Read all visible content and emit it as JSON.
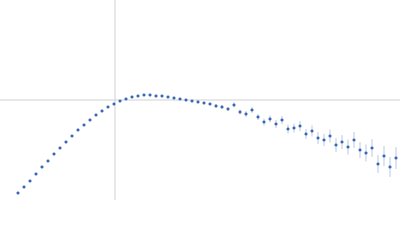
{
  "chart_data": {
    "type": "scatter",
    "x": [
      0.18,
      0.24,
      0.3,
      0.36,
      0.42,
      0.48,
      0.54,
      0.6,
      0.66,
      0.72,
      0.78,
      0.84,
      0.9,
      0.96,
      1.02,
      1.08,
      1.14,
      1.2,
      1.26,
      1.32,
      1.38,
      1.44,
      1.5,
      1.56,
      1.62,
      1.68,
      1.74,
      1.8,
      1.86,
      1.92,
      1.98,
      2.04,
      2.1,
      2.16,
      2.22,
      2.28,
      2.34,
      2.4,
      2.46,
      2.52,
      2.58,
      2.64,
      2.7,
      2.76,
      2.82,
      2.88,
      2.94,
      3.0,
      3.06,
      3.12,
      3.18,
      3.24,
      3.3,
      3.36,
      3.42,
      3.48,
      3.54,
      3.6,
      3.66,
      3.72,
      3.78,
      3.84,
      3.9,
      3.96
    ],
    "values": [
      0.07,
      0.13,
      0.19,
      0.26,
      0.33,
      0.39,
      0.46,
      0.52,
      0.58,
      0.64,
      0.7,
      0.75,
      0.8,
      0.85,
      0.89,
      0.93,
      0.96,
      0.99,
      1.01,
      1.03,
      1.04,
      1.05,
      1.05,
      1.04,
      1.04,
      1.03,
      1.02,
      1.01,
      1.0,
      0.99,
      0.98,
      0.97,
      0.96,
      0.94,
      0.93,
      0.91,
      0.95,
      0.88,
      0.86,
      0.9,
      0.83,
      0.78,
      0.81,
      0.76,
      0.8,
      0.71,
      0.72,
      0.74,
      0.66,
      0.69,
      0.62,
      0.6,
      0.64,
      0.55,
      0.58,
      0.53,
      0.6,
      0.5,
      0.47,
      0.52,
      0.36,
      0.44,
      0.33,
      0.42
    ],
    "errors": [
      0.005,
      0.005,
      0.005,
      0.005,
      0.005,
      0.005,
      0.005,
      0.005,
      0.005,
      0.005,
      0.005,
      0.005,
      0.005,
      0.005,
      0.005,
      0.005,
      0.005,
      0.005,
      0.005,
      0.005,
      0.005,
      0.005,
      0.005,
      0.005,
      0.005,
      0.005,
      0.005,
      0.005,
      0.01,
      0.01,
      0.01,
      0.015,
      0.015,
      0.02,
      0.02,
      0.02,
      0.025,
      0.025,
      0.03,
      0.03,
      0.03,
      0.035,
      0.035,
      0.04,
      0.04,
      0.045,
      0.045,
      0.05,
      0.05,
      0.055,
      0.06,
      0.06,
      0.065,
      0.07,
      0.07,
      0.075,
      0.08,
      0.08,
      0.085,
      0.09,
      0.09,
      0.1,
      0.1,
      0.11
    ],
    "color": "#3a66b8",
    "xlim": [
      0,
      4
    ],
    "ylim": [
      0,
      2
    ],
    "xticks": [
      1.15
    ],
    "yticks": [
      1
    ],
    "grid": true
  }
}
